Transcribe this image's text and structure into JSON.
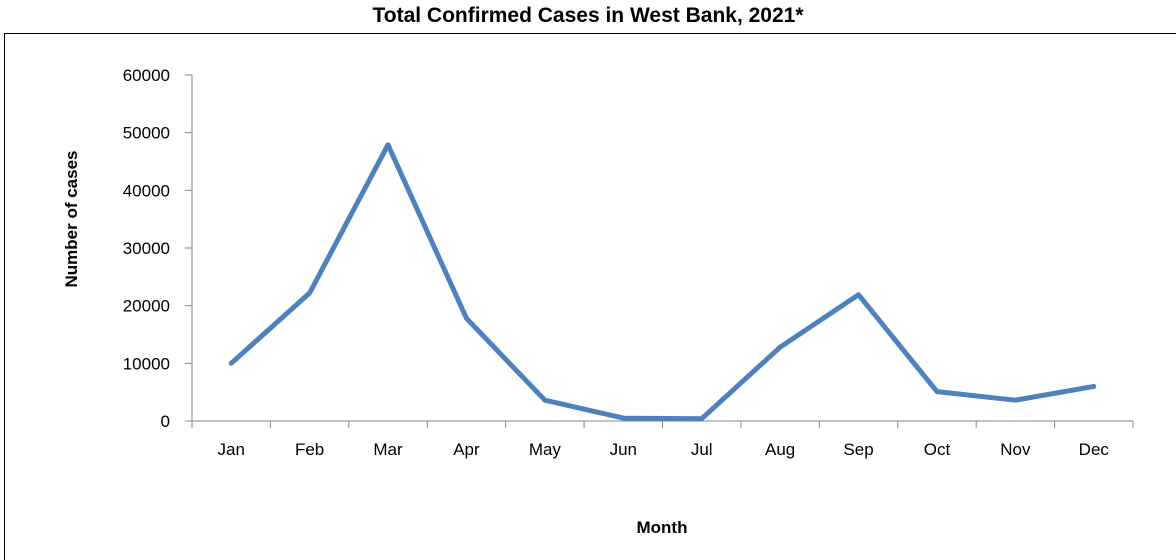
{
  "chart_data": {
    "type": "line",
    "title": "Total Confirmed Cases in West Bank, 2021*",
    "xlabel": "Month",
    "ylabel": "Number of cases",
    "categories": [
      "Jan",
      "Feb",
      "Mar",
      "Apr",
      "May",
      "Jun",
      "Jul",
      "Aug",
      "Sep",
      "Oct",
      "Nov",
      "Dec"
    ],
    "series": [
      {
        "values": [
          10000,
          22200,
          47900,
          17800,
          3600,
          500,
          400,
          12800,
          21900,
          5100,
          3600,
          6000
        ],
        "color": "#4f81bd"
      }
    ],
    "ylim": [
      0,
      60000
    ],
    "yticks": [
      "0",
      "10000",
      "20000",
      "30000",
      "40000",
      "50000",
      "60000"
    ],
    "grid": false,
    "legend": "none"
  }
}
